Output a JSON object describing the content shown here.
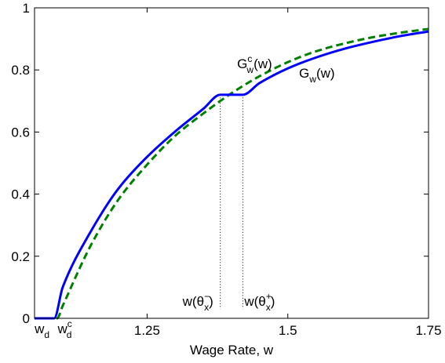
{
  "chart_data": {
    "type": "line",
    "xlabel": "Wage Rate, w",
    "ylabel": "",
    "title": "",
    "xlim": [
      1.05,
      1.75
    ],
    "ylim": [
      0,
      1
    ],
    "xticks": [
      1.25,
      1.5,
      1.75
    ],
    "xtick_labels": [
      "1.25",
      "1.5",
      "1.75"
    ],
    "yticks": [
      0,
      0.2,
      0.4,
      0.6,
      0.8,
      1
    ],
    "ytick_labels": [
      "0",
      "0.2",
      "0.4",
      "0.6",
      "0.8",
      "1"
    ],
    "grid": false,
    "series": [
      {
        "key": "G",
        "style": "solid",
        "color": "#0000ff",
        "x": [
          1.05,
          1.085,
          1.1,
          1.15,
          1.2,
          1.25,
          1.3,
          1.35,
          1.38,
          1.42,
          1.45,
          1.5,
          1.55,
          1.6,
          1.65,
          1.7,
          1.75
        ],
        "y": [
          0,
          0,
          0.1,
          0.28,
          0.42,
          0.52,
          0.602,
          0.675,
          0.72,
          0.72,
          0.758,
          0.805,
          0.84,
          0.868,
          0.89,
          0.909,
          0.924
        ]
      },
      {
        "key": "Gc",
        "style": "dashed",
        "color": "#008000",
        "x": [
          1.05,
          1.09,
          1.1,
          1.15,
          1.2,
          1.25,
          1.3,
          1.35,
          1.4,
          1.45,
          1.5,
          1.55,
          1.6,
          1.65,
          1.7,
          1.75
        ],
        "y": [
          0,
          0,
          0.04,
          0.235,
          0.385,
          0.495,
          0.588,
          0.66,
          0.725,
          0.78,
          0.825,
          0.86,
          0.885,
          0.905,
          0.92,
          0.932
        ]
      }
    ],
    "vlines": [
      {
        "key": "theta_minus",
        "x": 1.38,
        "ymax": 0.72
      },
      {
        "key": "theta_plus",
        "x": 1.42,
        "ymax": 0.72
      }
    ],
    "annotations": {
      "gc": {
        "base": "G",
        "sub": "w",
        "sup": "c",
        "tail": "(w)",
        "x": 1.41,
        "y": 0.805
      },
      "g": {
        "base": "G",
        "sub": "w",
        "tail": "(w)",
        "x": 1.52,
        "y": 0.775
      },
      "theta_minus": {
        "base": "w(θ",
        "sub": "x",
        "sup": "−",
        "tail": ")",
        "x": 1.38,
        "y": 0.04
      },
      "theta_plus": {
        "base": "w(θ",
        "sub": "x",
        "sup": "+",
        "tail": ")",
        "x": 1.42,
        "y": 0.04
      },
      "wd": {
        "base": "w",
        "sub": "d",
        "x": 1.085
      },
      "wdc": {
        "base": "w",
        "sub": "d",
        "sup": "c",
        "x": 1.105
      }
    }
  }
}
